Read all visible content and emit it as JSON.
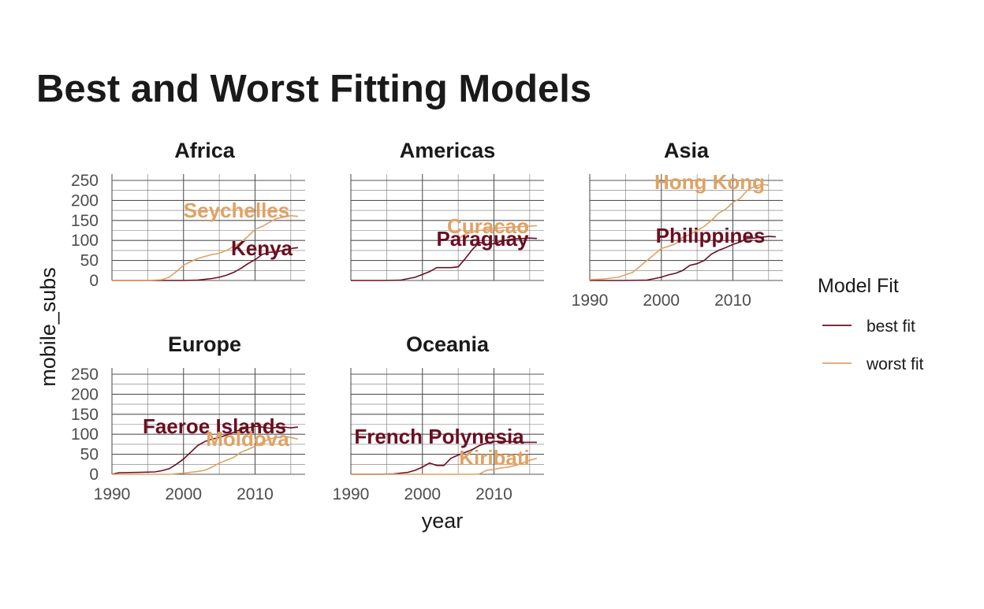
{
  "chart_data": {
    "type": "line",
    "title": "Best and Worst Fitting Models",
    "xlabel": "year",
    "ylabel": "mobile_subs",
    "xlim": [
      1990,
      2017
    ],
    "ylim": [
      0,
      250
    ],
    "x_ticks": [
      1990,
      2000,
      2010
    ],
    "y_ticks": [
      0,
      50,
      100,
      150,
      200,
      250
    ],
    "grid": true,
    "legend": {
      "title": "Model Fit",
      "position": "right",
      "entries": [
        {
          "label": "best fit",
          "color": "#6b0e22"
        },
        {
          "label": "worst fit",
          "color": "#e0a263"
        }
      ]
    },
    "facets": [
      {
        "region": "Africa",
        "series": [
          {
            "fit": "best fit",
            "country": "Kenya",
            "x": [
              1990,
              1995,
              1998,
              2000,
              2002,
              2004,
              2005,
              2006,
              2007,
              2008,
              2009,
              2010,
              2011,
              2012,
              2013,
              2014,
              2015,
              2016
            ],
            "y": [
              0,
              0,
              0,
              0,
              1,
              5,
              8,
              13,
              20,
              30,
              42,
              52,
              65,
              70,
              72,
              75,
              80,
              82
            ]
          },
          {
            "fit": "worst fit",
            "country": "Seychelles",
            "x": [
              1990,
              1995,
              1997,
              1998,
              1999,
              2000,
              2001,
              2002,
              2003,
              2004,
              2005,
              2006,
              2007,
              2008,
              2009,
              2010,
              2011,
              2012,
              2013,
              2014,
              2015,
              2016
            ],
            "y": [
              0,
              0,
              2,
              8,
              22,
              38,
              47,
              55,
              60,
              65,
              68,
              75,
              85,
              95,
              110,
              128,
              135,
              145,
              155,
              158,
              162,
              160
            ]
          }
        ]
      },
      {
        "region": "Americas",
        "series": [
          {
            "fit": "best fit",
            "country": "Paraguay",
            "x": [
              1990,
              1995,
              1997,
              1999,
              2000,
              2001,
              2002,
              2004,
              2005,
              2006,
              2007,
              2008,
              2009,
              2010,
              2011,
              2012,
              2013,
              2014,
              2015,
              2016
            ],
            "y": [
              0,
              0,
              1,
              8,
              15,
              22,
              32,
              32,
              34,
              55,
              78,
              95,
              90,
              92,
              98,
              102,
              104,
              105,
              106,
              105
            ]
          },
          {
            "fit": "worst fit",
            "country": "Curacao",
            "x": [
              2005,
              2006,
              2008,
              2010,
              2012,
              2014,
              2016
            ],
            "y": [
              104,
              116,
              125,
              130,
              133,
              135,
              137
            ]
          }
        ]
      },
      {
        "region": "Asia",
        "series": [
          {
            "fit": "best fit",
            "country": "Philippines",
            "x": [
              1990,
              1995,
              1998,
              2000,
              2001,
              2002,
              2003,
              2004,
              2005,
              2006,
              2007,
              2008,
              2009,
              2010,
              2011,
              2012,
              2013,
              2014,
              2015,
              2016
            ],
            "y": [
              0,
              0,
              1,
              8,
              14,
              18,
              25,
              38,
              42,
              50,
              66,
              75,
              82,
              90,
              96,
              105,
              106,
              108,
              110,
              109
            ]
          },
          {
            "fit": "worst fit",
            "country": "Hong Kong",
            "x": [
              1990,
              1992,
              1994,
              1996,
              1998,
              1999,
              2000,
              2001,
              2002,
              2003,
              2004,
              2005,
              2006,
              2007,
              2008,
              2009,
              2010,
              2011,
              2012,
              2013,
              2014,
              2015
            ],
            "y": [
              2,
              4,
              8,
              20,
              50,
              65,
              80,
              85,
              92,
              108,
              115,
              125,
              135,
              150,
              168,
              178,
              195,
              205,
              225,
              235,
              240,
              238
            ]
          }
        ]
      },
      {
        "region": "Europe",
        "series": [
          {
            "fit": "best fit",
            "country": "Faeroe Islands",
            "x": [
              1990,
              1991,
              1994,
              1996,
              1997,
              1998,
              1999,
              2000,
              2001,
              2002,
              2003,
              2004,
              2005,
              2006,
              2007,
              2008,
              2009,
              2010,
              2011,
              2012,
              2013,
              2014,
              2015,
              2016
            ],
            "y": [
              0,
              4,
              5,
              6,
              9,
              14,
              25,
              38,
              55,
              72,
              82,
              88,
              92,
              98,
              105,
              112,
              116,
              120,
              118,
              115,
              117,
              118,
              116,
              118
            ]
          },
          {
            "fit": "worst fit",
            "country": "Moldova",
            "x": [
              1990,
              1995,
              1998,
              2000,
              2002,
              2003,
              2004,
              2005,
              2006,
              2007,
              2008,
              2009,
              2010,
              2011,
              2012,
              2013,
              2014,
              2015,
              2016
            ],
            "y": [
              0,
              0,
              0,
              3,
              7,
              10,
              18,
              28,
              35,
              42,
              55,
              62,
              70,
              80,
              88,
              92,
              95,
              92,
              88
            ]
          }
        ]
      },
      {
        "region": "Oceania",
        "series": [
          {
            "fit": "best fit",
            "country": "French Polynesia",
            "x": [
              1990,
              1994,
              1996,
              1997,
              1998,
              1999,
              2000,
              2001,
              2002,
              2003,
              2004,
              2005,
              2006,
              2007,
              2008,
              2009,
              2010,
              2012,
              2014,
              2016
            ],
            "y": [
              0,
              0,
              1,
              3,
              5,
              10,
              18,
              28,
              22,
              22,
              40,
              48,
              55,
              62,
              72,
              78,
              82,
              82,
              80,
              80
            ]
          },
          {
            "fit": "worst fit",
            "country": "Kiribati",
            "x": [
              1990,
              1995,
              2000,
              2005,
              2007,
              2008,
              2009,
              2010,
              2011,
              2012,
              2013,
              2014,
              2015,
              2016
            ],
            "y": [
              0,
              0,
              0,
              0,
              0,
              1,
              10,
              12,
              16,
              18,
              22,
              28,
              35,
              40
            ]
          }
        ]
      }
    ]
  }
}
